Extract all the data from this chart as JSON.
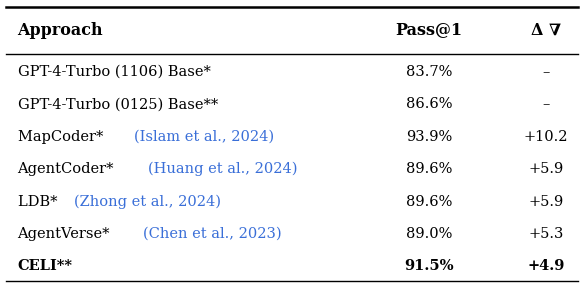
{
  "col_headers": [
    "Approach",
    "Pass@1",
    "Δ ∇"
  ],
  "rows": [
    {
      "approach_parts": [
        {
          "text": "GPT-4-Turbo (1106) Base*",
          "color": "#000000"
        }
      ],
      "pass1": "83.7%",
      "delta": "–",
      "bold": false
    },
    {
      "approach_parts": [
        {
          "text": "GPT-4-Turbo (0125) Base**",
          "color": "#000000"
        }
      ],
      "pass1": "86.6%",
      "delta": "–",
      "bold": false
    },
    {
      "approach_parts": [
        {
          "text": "MapCoder* ",
          "color": "#000000"
        },
        {
          "text": "(Islam et al., 2024)",
          "color": "#3a6fd8"
        }
      ],
      "pass1": "93.9%",
      "delta": "+10.2",
      "bold": false
    },
    {
      "approach_parts": [
        {
          "text": "AgentCoder* ",
          "color": "#000000"
        },
        {
          "text": "(Huang et al., 2024)",
          "color": "#3a6fd8"
        }
      ],
      "pass1": "89.6%",
      "delta": "+5.9",
      "bold": false
    },
    {
      "approach_parts": [
        {
          "text": "LDB* ",
          "color": "#000000"
        },
        {
          "text": "(Zhong et al., 2024)",
          "color": "#3a6fd8"
        }
      ],
      "pass1": "89.6%",
      "delta": "+5.9",
      "bold": false
    },
    {
      "approach_parts": [
        {
          "text": "AgentVerse* ",
          "color": "#000000"
        },
        {
          "text": "(Chen et al., 2023)",
          "color": "#3a6fd8"
        }
      ],
      "pass1": "89.0%",
      "delta": "+5.3",
      "bold": false
    },
    {
      "approach_parts": [
        {
          "text": "CELI**",
          "color": "#000000"
        }
      ],
      "pass1": "91.5%",
      "delta": "+4.9",
      "bold": true
    }
  ],
  "background_color": "#ffffff",
  "font_size": 10.5,
  "header_font_size": 11.5
}
